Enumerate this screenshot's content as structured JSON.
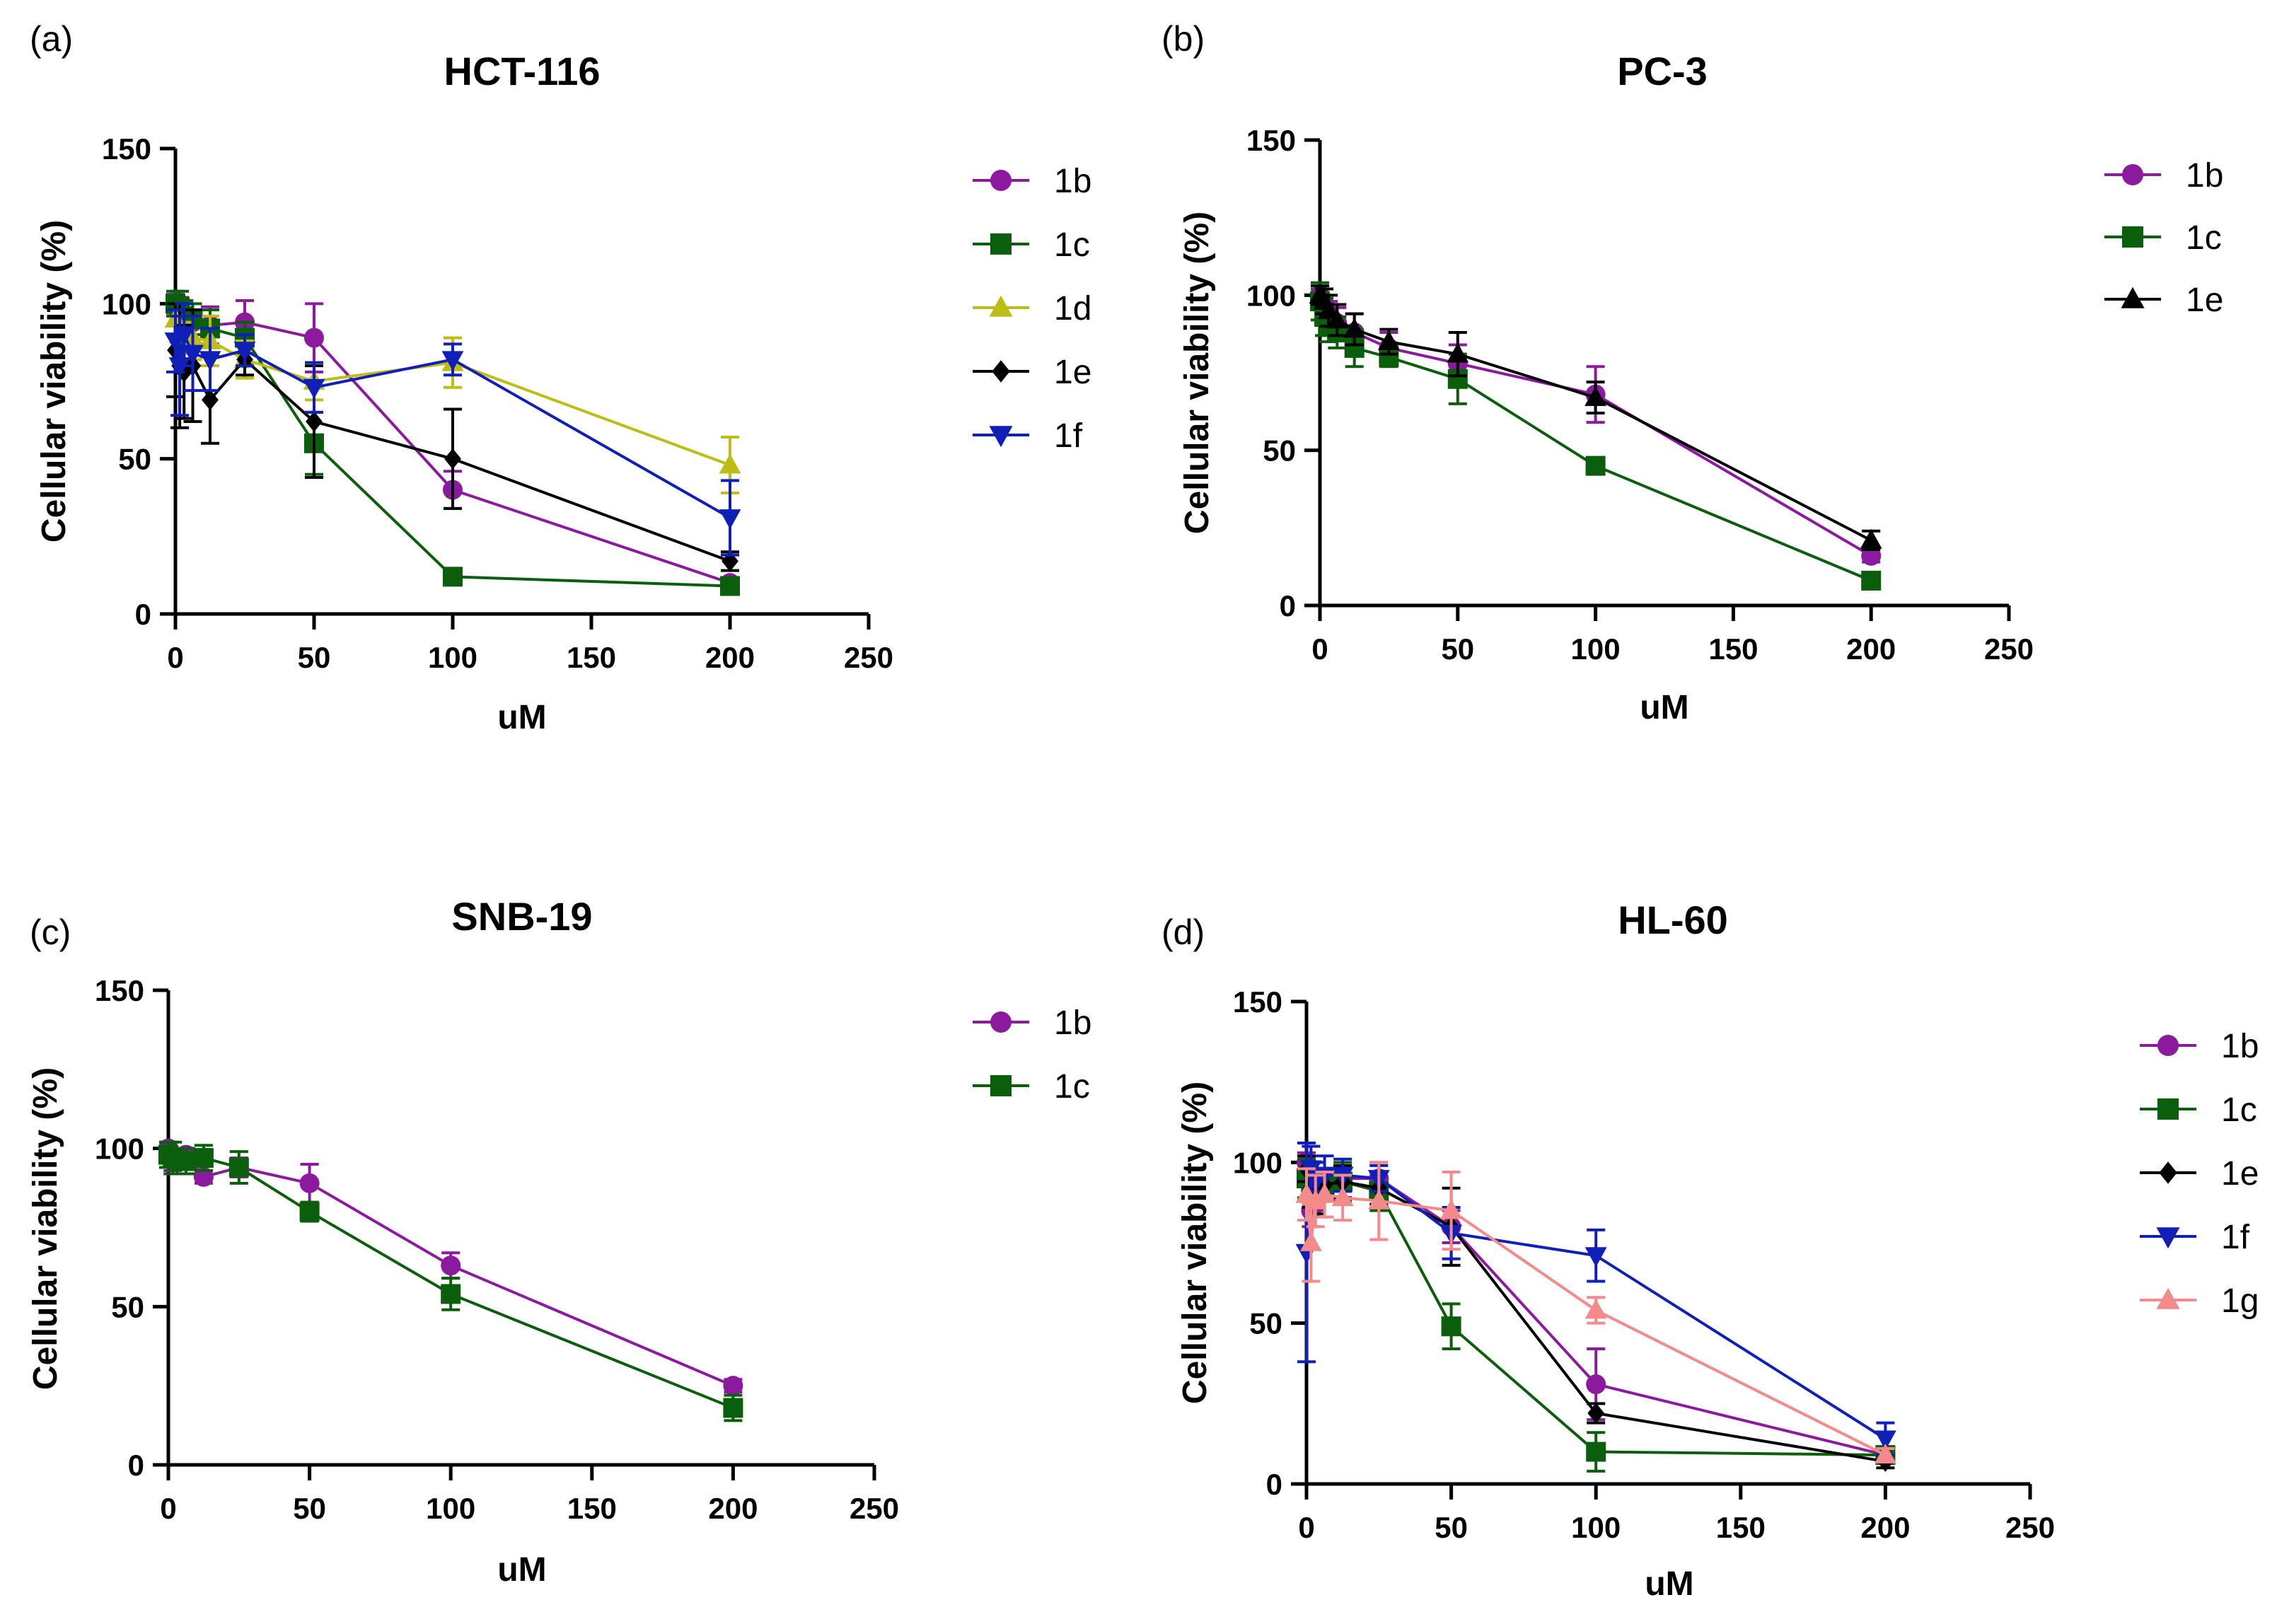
{
  "figure": {
    "background": "#ffffff"
  },
  "chart_data": [
    {
      "panel": "(a)",
      "type": "line",
      "title": "HCT-116",
      "xlabel": "uM",
      "ylabel": "Cellular viability (%)",
      "xlim": [
        0,
        250
      ],
      "ylim": [
        0,
        150
      ],
      "xticks": [
        0,
        50,
        100,
        150,
        200,
        250
      ],
      "yticks": [
        0,
        50,
        100,
        150
      ],
      "grid": false,
      "legend_position": "right",
      "series": [
        {
          "name": "1b",
          "color": "#8B1A9F",
          "marker": "circle",
          "x": [
            0,
            1.56,
            3.12,
            6.25,
            12.5,
            25,
            50,
            100,
            200
          ],
          "y": [
            100,
            98,
            95,
            94,
            93,
            94,
            89,
            40,
            10
          ],
          "err": [
            3,
            4,
            5,
            4,
            6,
            7,
            11,
            6,
            1
          ]
        },
        {
          "name": "1c",
          "color": "#0B5E0B",
          "marker": "square",
          "x": [
            0,
            1.56,
            3.12,
            6.25,
            12.5,
            25,
            50,
            100,
            200
          ],
          "y": [
            100,
            99,
            96,
            95,
            92,
            89,
            55,
            12,
            9
          ],
          "err": [
            4,
            5,
            5,
            5,
            6,
            5,
            10,
            2,
            1
          ]
        },
        {
          "name": "1d",
          "color": "#BDBD15",
          "marker": "triangle",
          "x": [
            0,
            1.56,
            3.12,
            6.25,
            12.5,
            25,
            50,
            100,
            200
          ],
          "y": [
            95,
            90,
            88,
            89,
            88,
            82,
            75,
            81,
            48
          ],
          "err": [
            5,
            6,
            6,
            7,
            8,
            6,
            6,
            8,
            9
          ]
        },
        {
          "name": "1e",
          "color": "#000000",
          "marker": "diamond",
          "x": [
            0,
            1.56,
            3.12,
            6.25,
            12.5,
            25,
            50,
            100,
            200
          ],
          "y": [
            85,
            80,
            78,
            80,
            69,
            82,
            62,
            50,
            17
          ],
          "err": [
            15,
            20,
            15,
            18,
            14,
            5,
            18,
            16,
            3
          ]
        },
        {
          "name": "1f",
          "color": "#0F1FB8",
          "marker": "triangle-down",
          "x": [
            0,
            1.56,
            3.12,
            6.25,
            12.5,
            25,
            50,
            100,
            200
          ],
          "y": [
            88,
            80,
            90,
            84,
            82,
            85,
            73,
            82,
            31
          ],
          "err": [
            10,
            16,
            10,
            12,
            10,
            5,
            8,
            5,
            12
          ]
        }
      ]
    },
    {
      "panel": "(b)",
      "type": "line",
      "title": "PC-3",
      "xlabel": "uM",
      "ylabel": "Cellular viability (%)",
      "xlim": [
        0,
        250
      ],
      "ylim": [
        0,
        150
      ],
      "xticks": [
        0,
        50,
        100,
        150,
        200,
        250
      ],
      "yticks": [
        0,
        50,
        100,
        150
      ],
      "grid": false,
      "legend_position": "right",
      "series": [
        {
          "name": "1b",
          "color": "#8B1A9F",
          "marker": "circle",
          "x": [
            0,
            1.56,
            3.12,
            6.25,
            12.5,
            25,
            50,
            100,
            200
          ],
          "y": [
            100,
            97,
            94,
            91,
            88,
            83,
            78,
            68,
            16
          ],
          "err": [
            2,
            3,
            4,
            5,
            6,
            5,
            6,
            9,
            2
          ]
        },
        {
          "name": "1c",
          "color": "#0B5E0B",
          "marker": "square",
          "x": [
            0,
            1.56,
            3.12,
            6.25,
            12.5,
            25,
            50,
            100,
            200
          ],
          "y": [
            98,
            93,
            90,
            88,
            83,
            80,
            73,
            45,
            8
          ],
          "err": [
            6,
            6,
            5,
            5,
            6,
            3,
            8,
            2,
            1
          ]
        },
        {
          "name": "1e",
          "color": "#000000",
          "marker": "triangle",
          "x": [
            0,
            1.56,
            3.12,
            6.25,
            12.5,
            25,
            50,
            100,
            200
          ],
          "y": [
            100,
            98,
            95,
            92,
            89,
            85,
            81,
            67,
            21
          ],
          "err": [
            3,
            4,
            5,
            5,
            5,
            4,
            7,
            5,
            3
          ]
        }
      ]
    },
    {
      "panel": "(c)",
      "type": "line",
      "title": "SNB-19",
      "xlabel": "uM",
      "ylabel": "Cellular viability (%)",
      "xlim": [
        0,
        250
      ],
      "ylim": [
        0,
        150
      ],
      "xticks": [
        0,
        50,
        100,
        150,
        200,
        250
      ],
      "yticks": [
        0,
        50,
        100,
        150
      ],
      "grid": false,
      "legend_position": "right",
      "series": [
        {
          "name": "1b",
          "color": "#8B1A9F",
          "marker": "circle",
          "x": [
            0,
            1.56,
            3.12,
            6.25,
            12.5,
            25,
            50,
            100,
            200
          ],
          "y": [
            100,
            96,
            97,
            98,
            91,
            94,
            89,
            63,
            25
          ],
          "err": [
            2,
            3,
            3,
            2,
            2,
            3,
            6,
            4,
            2
          ]
        },
        {
          "name": "1c",
          "color": "#0B5E0B",
          "marker": "square",
          "x": [
            0,
            1.56,
            3.12,
            6.25,
            12.5,
            25,
            50,
            100,
            200
          ],
          "y": [
            98,
            97,
            96,
            96,
            97,
            94,
            80,
            54,
            18
          ],
          "err": [
            4,
            5,
            4,
            4,
            4,
            5,
            3,
            5,
            4
          ]
        }
      ]
    },
    {
      "panel": "(d)",
      "type": "line",
      "title": "HL-60",
      "xlabel": "uM",
      "ylabel": "Cellular viability (%)",
      "xlim": [
        0,
        250
      ],
      "ylim": [
        0,
        150
      ],
      "xticks": [
        0,
        50,
        100,
        150,
        200,
        250
      ],
      "yticks": [
        0,
        50,
        100,
        150
      ],
      "grid": false,
      "legend_position": "right",
      "series": [
        {
          "name": "1b",
          "color": "#8B1A9F",
          "marker": "circle",
          "x": [
            0,
            1.56,
            3.12,
            6.25,
            12.5,
            25,
            50,
            100,
            200
          ],
          "y": [
            100,
            85,
            90,
            94,
            95,
            95,
            80,
            31,
            9
          ],
          "err": [
            3,
            5,
            5,
            4,
            4,
            5,
            5,
            11,
            2
          ]
        },
        {
          "name": "1c",
          "color": "#0B5E0B",
          "marker": "square",
          "x": [
            0,
            1.56,
            3.12,
            6.25,
            12.5,
            25,
            50,
            100,
            200
          ],
          "y": [
            95,
            93,
            92,
            93,
            94,
            91,
            49,
            10,
            9
          ],
          "err": [
            6,
            5,
            5,
            5,
            6,
            6,
            7,
            6,
            2
          ]
        },
        {
          "name": "1e",
          "color": "#000000",
          "marker": "diamond",
          "x": [
            0,
            1.56,
            3.12,
            6.25,
            12.5,
            25,
            50,
            100,
            200
          ],
          "y": [
            98,
            92,
            90,
            93,
            94,
            92,
            80,
            22,
            7
          ],
          "err": [
            4,
            6,
            6,
            5,
            5,
            5,
            12,
            3,
            2
          ]
        },
        {
          "name": "1f",
          "color": "#0F1FB8",
          "marker": "triangle-down",
          "x": [
            0,
            1.56,
            3.12,
            6.25,
            12.5,
            25,
            50,
            100,
            200
          ],
          "y": [
            72,
            98,
            94,
            96,
            96,
            95,
            78,
            71,
            14
          ],
          "err": [
            34,
            7,
            6,
            6,
            5,
            4,
            8,
            8,
            5
          ]
        },
        {
          "name": "1g",
          "color": "#F48A8A",
          "marker": "triangle",
          "x": [
            0,
            1.56,
            3.12,
            6.25,
            12.5,
            25,
            50,
            100,
            200
          ],
          "y": [
            90,
            75,
            88,
            90,
            89,
            88,
            85,
            54,
            9
          ],
          "err": [
            8,
            12,
            8,
            7,
            7,
            12,
            12,
            4,
            2
          ]
        }
      ]
    }
  ]
}
